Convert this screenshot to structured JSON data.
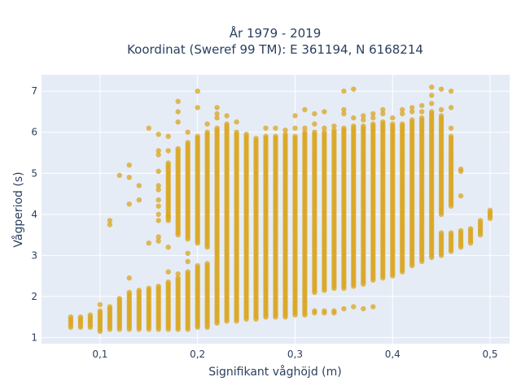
{
  "chart_data": {
    "type": "scatter",
    "title": "År 1979 - 2019",
    "subtitle": "Koordinat (Sweref 99 TM): E 361194, N 6168214",
    "xlabel": "Signifikant våghöjd (m)",
    "ylabel": "Vågperiod (s)",
    "xlim": [
      0.04,
      0.52
    ],
    "ylim": [
      0.85,
      7.4
    ],
    "x_ticks": [
      0.1,
      0.2,
      0.3,
      0.4,
      0.5
    ],
    "x_tick_labels": [
      "0,1",
      "0,2",
      "0,3",
      "0,4",
      "0,5"
    ],
    "y_ticks": [
      1,
      2,
      3,
      4,
      5,
      6,
      7
    ],
    "y_tick_labels": [
      "1",
      "2",
      "3",
      "4",
      "5",
      "6",
      "7"
    ],
    "grid": true,
    "marker_color": "#DAA520",
    "marker_opacity": 0.75,
    "column_step": 0.01,
    "y_step": 0.05,
    "columns": [
      {
        "x": 0.07,
        "ranges": [
          [
            1.25,
            1.5
          ]
        ]
      },
      {
        "x": 0.08,
        "ranges": [
          [
            1.25,
            1.52
          ]
        ]
      },
      {
        "x": 0.09,
        "ranges": [
          [
            1.25,
            1.57
          ]
        ]
      },
      {
        "x": 0.1,
        "ranges": [
          [
            1.15,
            1.65
          ]
        ],
        "extra": [
          1.8
        ]
      },
      {
        "x": 0.11,
        "ranges": [
          [
            1.2,
            1.75
          ]
        ],
        "extra": [
          3.75,
          3.85
        ]
      },
      {
        "x": 0.12,
        "ranges": [
          [
            1.2,
            1.95
          ]
        ],
        "extra": [
          4.95
        ]
      },
      {
        "x": 0.13,
        "ranges": [
          [
            1.2,
            2.1
          ]
        ],
        "extra": [
          2.45,
          4.25,
          4.9,
          5.2
        ]
      },
      {
        "x": 0.14,
        "ranges": [
          [
            1.2,
            2.15
          ]
        ],
        "extra": [
          4.35,
          4.7
        ]
      },
      {
        "x": 0.15,
        "ranges": [
          [
            1.2,
            2.2
          ]
        ],
        "extra": [
          3.3,
          6.1
        ]
      },
      {
        "x": 0.16,
        "ranges": [
          [
            1.2,
            2.25
          ]
        ],
        "extra": [
          3.35,
          3.45,
          3.85,
          4.0,
          4.2,
          4.35,
          4.6,
          4.7,
          5.05,
          5.45,
          5.55,
          5.95
        ]
      },
      {
        "x": 0.17,
        "ranges": [
          [
            1.2,
            2.35
          ],
          [
            3.85,
            5.25
          ]
        ],
        "extra": [
          2.6,
          3.2,
          3.95,
          5.55,
          5.9
        ]
      },
      {
        "x": 0.18,
        "ranges": [
          [
            1.2,
            2.45
          ],
          [
            3.5,
            5.6
          ]
        ],
        "extra": [
          2.55,
          6.25,
          6.5,
          6.75
        ]
      },
      {
        "x": 0.19,
        "ranges": [
          [
            1.2,
            2.6
          ],
          [
            3.4,
            5.75
          ]
        ],
        "extra": [
          2.85,
          3.05,
          6.0
        ]
      },
      {
        "x": 0.2,
        "ranges": [
          [
            1.25,
            2.75
          ],
          [
            3.3,
            5.9
          ]
        ],
        "extra": [
          6.6,
          7.0
        ]
      },
      {
        "x": 0.21,
        "ranges": [
          [
            1.25,
            2.8
          ],
          [
            3.2,
            6.0
          ]
        ],
        "extra": [
          6.2
        ]
      },
      {
        "x": 0.22,
        "ranges": [
          [
            1.35,
            6.1
          ]
        ],
        "extra": [
          6.35,
          6.45,
          6.6
        ]
      },
      {
        "x": 0.23,
        "ranges": [
          [
            1.4,
            6.2
          ]
        ],
        "extra": [
          6.4
        ]
      },
      {
        "x": 0.24,
        "ranges": [
          [
            1.4,
            6.0
          ]
        ],
        "extra": [
          6.25
        ]
      },
      {
        "x": 0.25,
        "ranges": [
          [
            1.45,
            5.95
          ]
        ]
      },
      {
        "x": 0.26,
        "ranges": [
          [
            1.45,
            5.85
          ]
        ]
      },
      {
        "x": 0.27,
        "ranges": [
          [
            1.5,
            5.9
          ]
        ],
        "extra": [
          6.1
        ]
      },
      {
        "x": 0.28,
        "ranges": [
          [
            1.5,
            5.9
          ]
        ],
        "extra": [
          6.1
        ]
      },
      {
        "x": 0.29,
        "ranges": [
          [
            1.5,
            5.95
          ]
        ],
        "extra": [
          6.05
        ]
      },
      {
        "x": 0.3,
        "ranges": [
          [
            1.55,
            5.9
          ]
        ],
        "extra": [
          6.1,
          6.4
        ]
      },
      {
        "x": 0.31,
        "ranges": [
          [
            1.55,
            6.0
          ]
        ],
        "extra": [
          6.1,
          6.55
        ]
      },
      {
        "x": 0.32,
        "ranges": [
          [
            1.6,
            1.65
          ],
          [
            2.1,
            6.0
          ]
        ],
        "extra": [
          6.2,
          6.45
        ]
      },
      {
        "x": 0.33,
        "ranges": [
          [
            1.6,
            1.65
          ],
          [
            2.15,
            6.0
          ]
        ],
        "extra": [
          6.1,
          6.5
        ]
      },
      {
        "x": 0.34,
        "ranges": [
          [
            1.6,
            1.65
          ],
          [
            2.2,
            6.05
          ]
        ],
        "extra": [
          6.15
        ]
      },
      {
        "x": 0.35,
        "ranges": [
          [
            2.2,
            6.1
          ]
        ],
        "extra": [
          1.7,
          6.45,
          6.55,
          7.0
        ]
      },
      {
        "x": 0.36,
        "ranges": [
          [
            2.25,
            6.1
          ]
        ],
        "extra": [
          1.75,
          6.15,
          6.35,
          7.05
        ]
      },
      {
        "x": 0.37,
        "ranges": [
          [
            2.3,
            6.15
          ]
        ],
        "extra": [
          1.7,
          6.3,
          6.4
        ]
      },
      {
        "x": 0.38,
        "ranges": [
          [
            2.4,
            6.2
          ]
        ],
        "extra": [
          1.75,
          6.35,
          6.45
        ]
      },
      {
        "x": 0.39,
        "ranges": [
          [
            2.45,
            6.25
          ]
        ],
        "extra": [
          6.45,
          6.55
        ]
      },
      {
        "x": 0.4,
        "ranges": [
          [
            2.5,
            6.2
          ]
        ],
        "extra": [
          6.35
        ]
      },
      {
        "x": 0.41,
        "ranges": [
          [
            2.6,
            6.2
          ]
        ],
        "extra": [
          6.45,
          6.55
        ]
      },
      {
        "x": 0.42,
        "ranges": [
          [
            2.75,
            6.3
          ]
        ],
        "extra": [
          6.5,
          6.6
        ]
      },
      {
        "x": 0.43,
        "ranges": [
          [
            2.85,
            6.35
          ]
        ],
        "extra": [
          6.5,
          6.65
        ]
      },
      {
        "x": 0.44,
        "ranges": [
          [
            2.95,
            6.5
          ]
        ],
        "extra": [
          6.7,
          6.9,
          7.1
        ]
      },
      {
        "x": 0.45,
        "ranges": [
          [
            3.0,
            3.55
          ],
          [
            4.0,
            6.4
          ]
        ],
        "extra": [
          6.55,
          7.05
        ]
      },
      {
        "x": 0.46,
        "ranges": [
          [
            3.1,
            3.55
          ],
          [
            4.2,
            5.9
          ]
        ],
        "extra": [
          6.1,
          6.6,
          7.0
        ]
      },
      {
        "x": 0.47,
        "ranges": [
          [
            3.2,
            3.6
          ]
        ],
        "extra": [
          4.45,
          5.05,
          5.1
        ]
      },
      {
        "x": 0.48,
        "ranges": [
          [
            3.3,
            3.65
          ]
        ]
      },
      {
        "x": 0.49,
        "ranges": [
          [
            3.5,
            3.85
          ]
        ]
      },
      {
        "x": 0.5,
        "ranges": [
          [
            3.9,
            4.1
          ]
        ]
      }
    ]
  }
}
